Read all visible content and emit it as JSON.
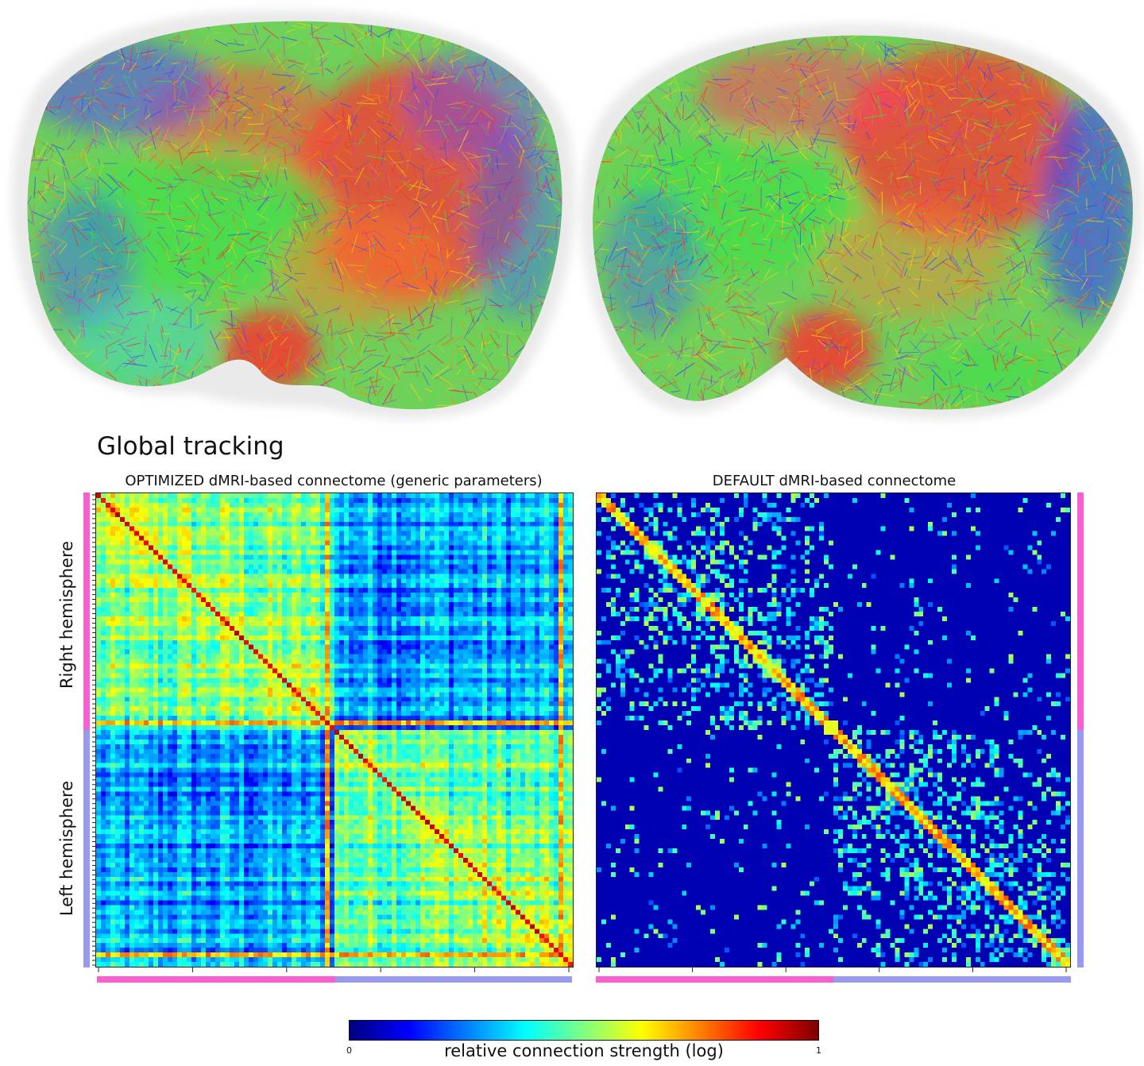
{
  "heading": "Global tracking",
  "matrices": [
    {
      "id": "optimized",
      "title": "OPTIMIZED dMRI-based connectome (generic parameters)"
    },
    {
      "id": "default",
      "title": "DEFAULT dMRI-based connectome"
    }
  ],
  "hemisphere_labels": {
    "right": "Right hemisphere",
    "left": "Left hemisphere"
  },
  "hemisphere_colors": {
    "right": "#f95fd0",
    "left": "#9999ee"
  },
  "colorbar": {
    "label": "relative connection strength (log)",
    "min_label": "0",
    "max_label": "1",
    "colormap": "jet"
  },
  "brain_fiber_colors": [
    "#ff2a2a",
    "#33ee33",
    "#3344ff",
    "#ff8800",
    "#cc33cc",
    "#ffd800"
  ]
}
